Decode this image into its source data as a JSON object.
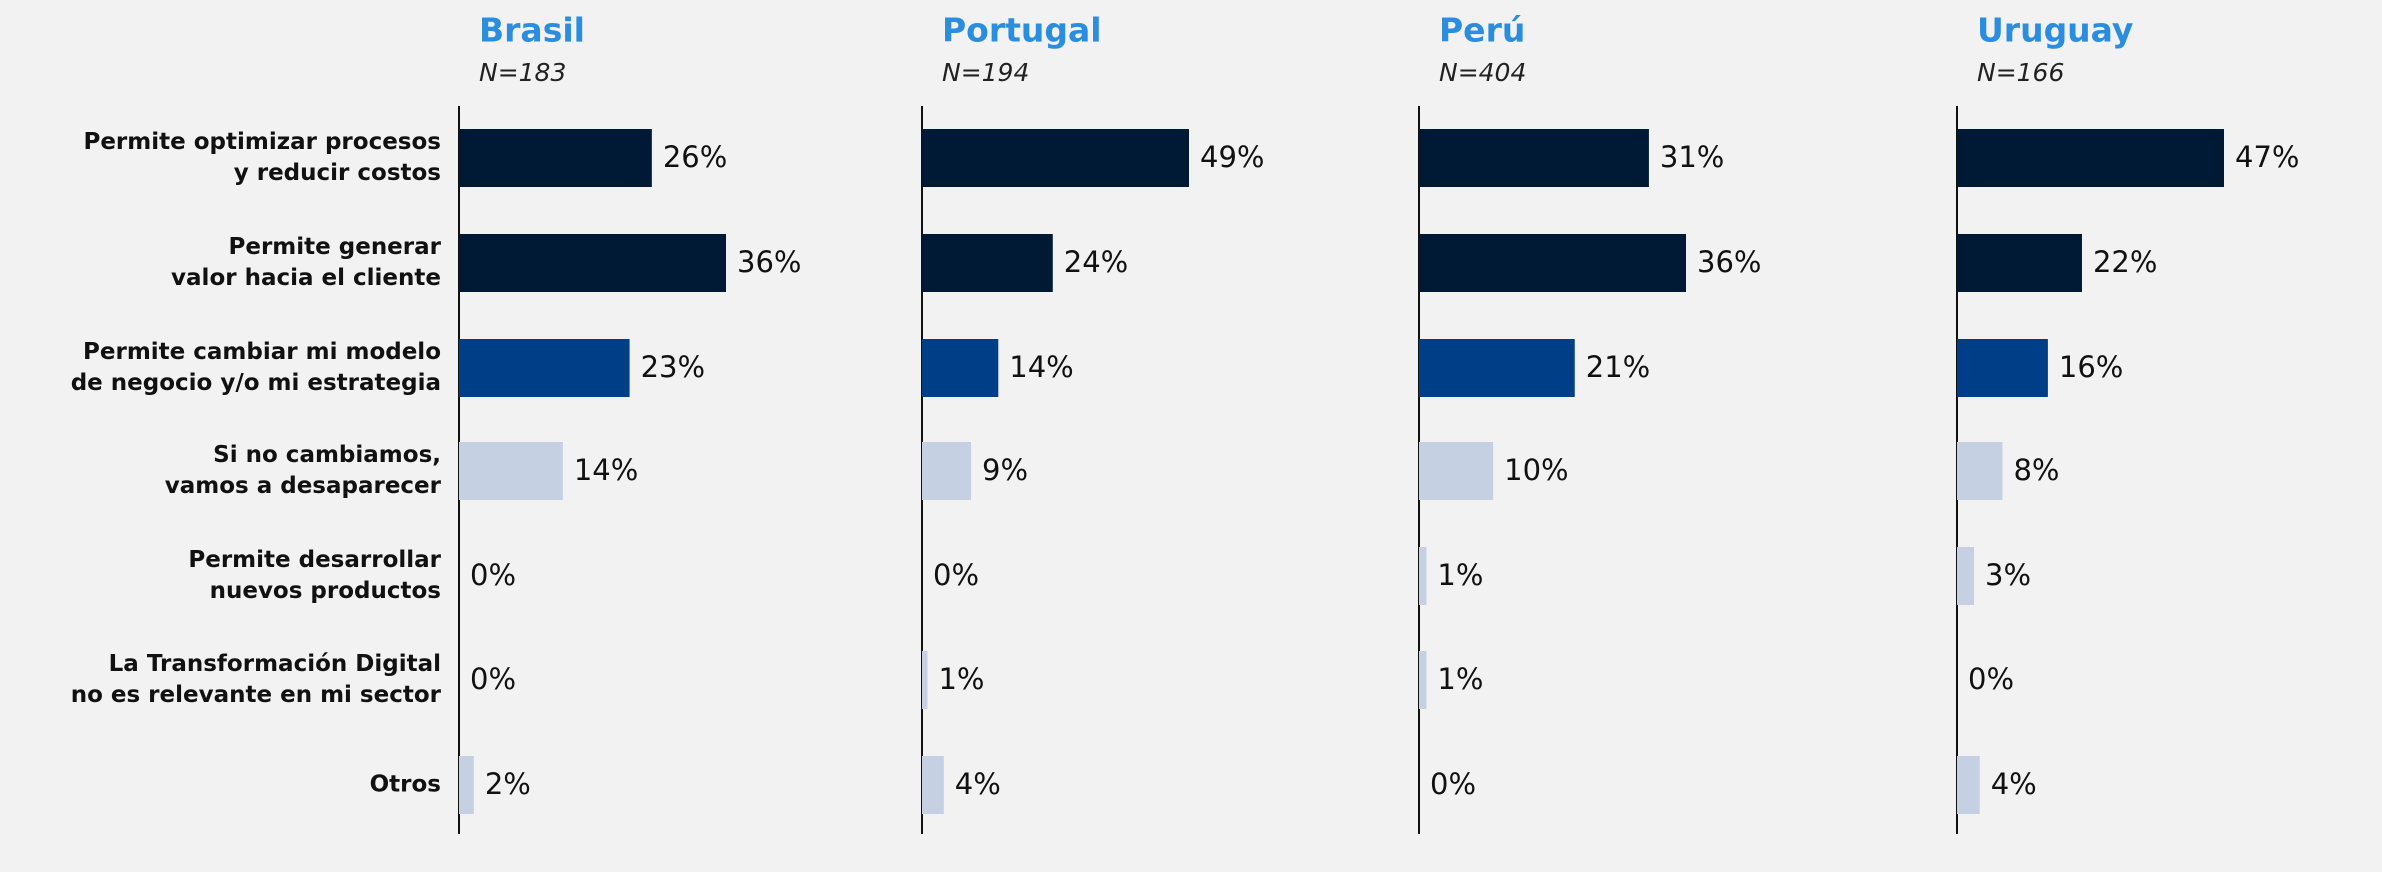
{
  "chart_data": [
    {
      "type": "bar",
      "orientation": "horizontal",
      "title": "Brasil",
      "subtitle": "N=183",
      "categories": [
        "Permite optimizar procesos\ny reducir costos",
        "Permite generar\nvalor hacia el cliente",
        "Permite cambiar mi modelo\nde negocio y/o mi estrategia",
        "Si no cambiamos,\nvamos a desaparecer",
        "Permite desarrollar\nnuevos productos",
        "La Transformación Digital\nno es relevante en mi sector",
        "Otros"
      ],
      "values": [
        26,
        36,
        23,
        14,
        0,
        0,
        2
      ],
      "value_labels": [
        "26%",
        "36%",
        "23%",
        "14%",
        "0%",
        "0%",
        "2%"
      ],
      "colors": [
        "#001a35",
        "#001a35",
        "#003f87",
        "#c5d0e2",
        "#c5d0e2",
        "#c5d0e2",
        "#c5d0e2"
      ],
      "xlim": [
        0,
        36
      ]
    },
    {
      "type": "bar",
      "orientation": "horizontal",
      "title": "Portugal",
      "subtitle": "N=194",
      "values": [
        49,
        24,
        14,
        9,
        0,
        1,
        4
      ],
      "value_labels": [
        "49%",
        "24%",
        "14%",
        "9%",
        "0%",
        "1%",
        "4%"
      ],
      "colors": [
        "#001a35",
        "#001a35",
        "#003f87",
        "#c5d0e2",
        "#c5d0e2",
        "#c5d0e2",
        "#c5d0e2"
      ],
      "xlim": [
        0,
        49
      ]
    },
    {
      "type": "bar",
      "orientation": "horizontal",
      "title": "Perú",
      "subtitle": "N=404",
      "values": [
        31,
        36,
        21,
        10,
        1,
        1,
        0
      ],
      "value_labels": [
        "31%",
        "36%",
        "21%",
        "10%",
        "1%",
        "1%",
        "0%"
      ],
      "colors": [
        "#001a35",
        "#001a35",
        "#003f87",
        "#c5d0e2",
        "#c5d0e2",
        "#c5d0e2",
        "#c5d0e2"
      ],
      "xlim": [
        0,
        36
      ]
    },
    {
      "type": "bar",
      "orientation": "horizontal",
      "title": "Uruguay",
      "subtitle": "N=166",
      "values": [
        47,
        22,
        16,
        8,
        3,
        0,
        4
      ],
      "value_labels": [
        "47%",
        "22%",
        "16%",
        "8%",
        "3%",
        "0%",
        "4%"
      ],
      "colors": [
        "#001a35",
        "#001a35",
        "#003f87",
        "#c5d0e2",
        "#c5d0e2",
        "#c5d0e2",
        "#c5d0e2"
      ],
      "xlim": [
        0,
        47
      ]
    }
  ]
}
